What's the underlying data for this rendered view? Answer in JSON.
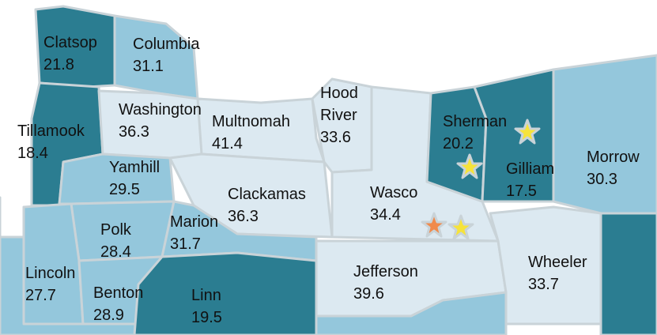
{
  "counties": [
    {
      "name": "Clatsop",
      "value": 21.8
    },
    {
      "name": "Columbia",
      "value": 31.1
    },
    {
      "name": "Washington",
      "value": 36.3
    },
    {
      "name": "Multnomah",
      "value": 41.4
    },
    {
      "name": "Tillamook",
      "value": 18.4
    },
    {
      "name": "Hood River",
      "value": 33.6
    },
    {
      "name": "Sherman",
      "value": 20.2
    },
    {
      "name": "Gilliam",
      "value": 17.5
    },
    {
      "name": "Morrow",
      "value": 30.3
    },
    {
      "name": "Yamhill",
      "value": 29.5
    },
    {
      "name": "Clackamas",
      "value": 36.3
    },
    {
      "name": "Wasco",
      "value": 34.4
    },
    {
      "name": "Polk",
      "value": 28.4
    },
    {
      "name": "Marion",
      "value": 31.7
    },
    {
      "name": "Lincoln",
      "value": 27.7
    },
    {
      "name": "Benton",
      "value": 28.9
    },
    {
      "name": "Linn",
      "value": 19.5
    },
    {
      "name": "Jefferson",
      "value": 39.6
    },
    {
      "name": "Wheeler",
      "value": 33.7
    }
  ]
}
